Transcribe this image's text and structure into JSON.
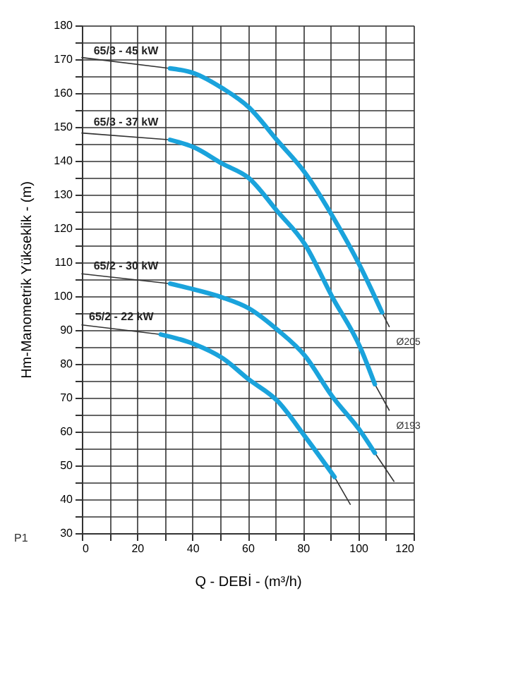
{
  "chart_data": {
    "type": "line",
    "xlabel": "Q - DEBİ - (m³/h)",
    "ylabel": "Hm-Manometrik Yükseklik - (m)",
    "xlim": [
      0,
      120
    ],
    "ylim": [
      30,
      180
    ],
    "xticks": [
      0,
      {
        "value": 10,
        "label": null
      },
      20,
      {
        "value": 30,
        "label": null
      },
      40,
      {
        "value": 50,
        "label": null
      },
      60,
      {
        "value": 70,
        "label": null
      },
      80,
      {
        "value": 90,
        "label": null
      },
      100,
      {
        "value": 110,
        "label": null
      },
      120
    ],
    "yticks": [
      30,
      {
        "value": 35,
        "label": null
      },
      40,
      {
        "value": 45,
        "label": null
      },
      50,
      {
        "value": 55,
        "label": null
      },
      60,
      {
        "value": 65,
        "label": null
      },
      70,
      {
        "value": 75,
        "label": null
      },
      80,
      {
        "value": 85,
        "label": null
      },
      90,
      {
        "value": 95,
        "label": null
      },
      100,
      {
        "value": 105,
        "label": null
      },
      110,
      {
        "value": 115,
        "label": null
      },
      120,
      {
        "value": 125,
        "label": null
      },
      130,
      {
        "value": 135,
        "label": null
      },
      140,
      {
        "value": 145,
        "label": null
      },
      150,
      {
        "value": 155,
        "label": null
      },
      160,
      {
        "value": 165,
        "label": null
      },
      170,
      {
        "value": 175,
        "label": null
      },
      180
    ],
    "grid": true,
    "legend": false,
    "marker": "none",
    "line_style": "solid",
    "series": [
      {
        "color": "#333333",
        "x": [
          0,
          31.9,
          70,
          108.6,
          111.2
        ],
        "values": [
          170.5,
          167.3,
          null,
          95.2,
          91
        ]
      },
      {
        "name": "65/3 - 45 kW",
        "color": "#1aa3dc",
        "x": [
          31.9,
          40.5,
          50.9,
          60.4,
          70.7,
          80.7,
          90.5,
          100.9,
          108.6
        ],
        "values": [
          167.3,
          165.9,
          161.4,
          155.8,
          146,
          136.5,
          123.9,
          108.5,
          95.2
        ]
      },
      {
        "color": "#333333",
        "x": [
          0,
          31.9,
          70,
          106,
          111.2
        ],
        "values": [
          148.2,
          146.2,
          null,
          74,
          66.3
        ]
      },
      {
        "name": "65/3 - 37 kW",
        "color": "#1aa3dc",
        "x": [
          31.9,
          40.5,
          50.9,
          60.4,
          70.7,
          80.7,
          90.5,
          100.9,
          106
        ],
        "values": [
          146.2,
          144,
          139.1,
          134.9,
          125.1,
          115.3,
          99.9,
          84.5,
          74
        ]
      },
      {
        "color": "#333333",
        "x": [
          0,
          31.9,
          70,
          106,
          112.9
        ],
        "values": [
          106.6,
          103.7,
          null,
          53.7,
          45.3
        ]
      },
      {
        "name": "65/2 - 30 kW",
        "color": "#1aa3dc",
        "x": [
          31.9,
          40.5,
          50.9,
          60.4,
          70.7,
          80.7,
          90.5,
          100.9,
          106
        ],
        "values": [
          103.7,
          102,
          99.6,
          96.4,
          90.1,
          82.4,
          70.5,
          60,
          53.7
        ]
      },
      {
        "color": "#333333",
        "x": [
          0,
          28.5,
          60,
          91.4,
          97.1
        ],
        "values": [
          91.5,
          88.7,
          null,
          46.6,
          38.5
        ]
      },
      {
        "name": "65/2 - 22 kW",
        "color": "#1aa3dc",
        "x": [
          28.5,
          40.5,
          50.9,
          60.4,
          70.7,
          80.7,
          91.4
        ],
        "values": [
          88.7,
          85.9,
          81.7,
          75.4,
          69.1,
          58.6,
          46.6
        ]
      }
    ],
    "annotations": [
      {
        "text": "Ø205",
        "x": 111.2,
        "y": 91
      },
      {
        "text": "Ø193",
        "x": 111.2,
        "y": 66.3
      },
      "P1"
    ]
  }
}
